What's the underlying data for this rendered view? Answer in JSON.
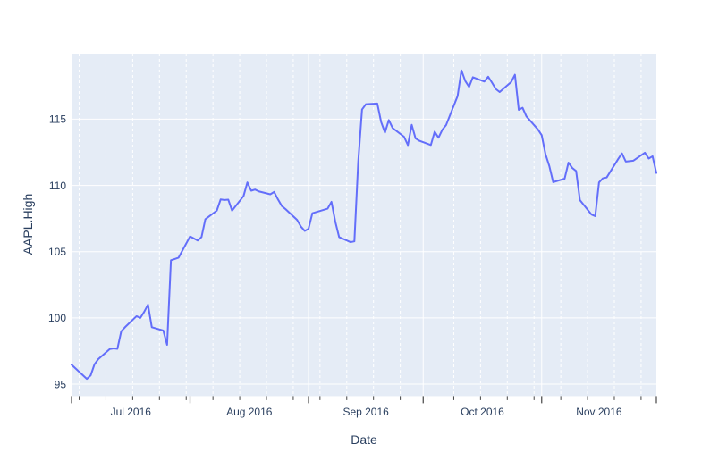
{
  "figure": {
    "background_color": "#ffffff",
    "plot_bgcolor": "#e5ecf6",
    "grid_color": "#ffffff",
    "line_color": "#636efa",
    "text_color": "#2a3f5f",
    "tick_color": "#444444"
  },
  "chart_data": {
    "type": "line",
    "title": "",
    "xlabel": "Date",
    "ylabel": "AAPL.High",
    "legend": "none",
    "grid": "on",
    "x_range": [
      "2016-07-01",
      "2016-12-01"
    ],
    "ylim": [
      94.1,
      119.95
    ],
    "yticks": [
      95,
      100,
      105,
      110,
      115
    ],
    "ytick_labels": [
      "95",
      "100",
      "105",
      "110",
      "115"
    ],
    "xticks_major": [
      "2016-07-01",
      "2016-08-01",
      "2016-09-01",
      "2016-10-01",
      "2016-11-01",
      "2016-12-01"
    ],
    "xtick_labels": [
      {
        "label": "Jul 2016",
        "period_center": "2016-07-16T12:00"
      },
      {
        "label": "Aug 2016",
        "period_center": "2016-08-16T12:00"
      },
      {
        "label": "Sep 2016",
        "period_center": "2016-09-16T00:00"
      },
      {
        "label": "Oct 2016",
        "period_center": "2016-10-16T12:00"
      },
      {
        "label": "Nov 2016",
        "period_center": "2016-11-16T00:00"
      }
    ],
    "minor_ticks": "weekly-sundays",
    "series": [
      {
        "name": "AAPL.High",
        "dates": [
          "2016-07-01",
          "2016-07-05",
          "2016-07-06",
          "2016-07-07",
          "2016-07-08",
          "2016-07-11",
          "2016-07-12",
          "2016-07-13",
          "2016-07-14",
          "2016-07-15",
          "2016-07-18",
          "2016-07-19",
          "2016-07-20",
          "2016-07-21",
          "2016-07-22",
          "2016-07-25",
          "2016-07-26",
          "2016-07-27",
          "2016-07-28",
          "2016-07-29",
          "2016-08-01",
          "2016-08-02",
          "2016-08-03",
          "2016-08-04",
          "2016-08-05",
          "2016-08-08",
          "2016-08-09",
          "2016-08-10",
          "2016-08-11",
          "2016-08-12",
          "2016-08-15",
          "2016-08-16",
          "2016-08-17",
          "2016-08-18",
          "2016-08-19",
          "2016-08-22",
          "2016-08-23",
          "2016-08-24",
          "2016-08-25",
          "2016-08-26",
          "2016-08-29",
          "2016-08-30",
          "2016-08-31",
          "2016-09-01",
          "2016-09-02",
          "2016-09-06",
          "2016-09-07",
          "2016-09-08",
          "2016-09-09",
          "2016-09-12",
          "2016-09-13",
          "2016-09-14",
          "2016-09-15",
          "2016-09-16",
          "2016-09-19",
          "2016-09-20",
          "2016-09-21",
          "2016-09-22",
          "2016-09-23",
          "2016-09-26",
          "2016-09-27",
          "2016-09-28",
          "2016-09-29",
          "2016-09-30",
          "2016-10-03",
          "2016-10-04",
          "2016-10-05",
          "2016-10-06",
          "2016-10-07",
          "2016-10-10",
          "2016-10-11",
          "2016-10-12",
          "2016-10-13",
          "2016-10-14",
          "2016-10-17",
          "2016-10-18",
          "2016-10-19",
          "2016-10-20",
          "2016-10-21",
          "2016-10-24",
          "2016-10-25",
          "2016-10-26",
          "2016-10-27",
          "2016-10-28",
          "2016-10-31",
          "2016-11-01",
          "2016-11-02",
          "2016-11-03",
          "2016-11-04",
          "2016-11-07",
          "2016-11-08",
          "2016-11-09",
          "2016-11-10",
          "2016-11-11",
          "2016-11-14",
          "2016-11-15",
          "2016-11-16",
          "2016-11-17",
          "2016-11-18",
          "2016-11-21",
          "2016-11-22",
          "2016-11-23",
          "2016-11-25",
          "2016-11-28",
          "2016-11-29",
          "2016-11-30",
          "2016-12-01"
        ],
        "values": [
          96.47,
          95.4,
          95.66,
          96.5,
          96.89,
          97.65,
          97.7,
          97.67,
          98.99,
          99.3,
          100.13,
          100.0,
          100.46,
          101.0,
          99.3,
          99.05,
          97.97,
          104.35,
          104.45,
          104.55,
          106.15,
          106.0,
          105.84,
          106.1,
          107.45,
          108.1,
          108.94,
          108.9,
          108.93,
          108.1,
          109.2,
          110.23,
          109.6,
          109.69,
          109.55,
          109.33,
          109.51,
          108.95,
          108.45,
          108.21,
          107.4,
          106.9,
          106.57,
          106.73,
          107.9,
          108.25,
          108.76,
          107.27,
          106.1,
          105.72,
          105.78,
          111.77,
          115.73,
          116.13,
          116.18,
          114.78,
          113.99,
          114.93,
          114.33,
          113.67,
          113.04,
          114.57,
          113.55,
          113.37,
          113.05,
          114.06,
          113.6,
          114.2,
          114.56,
          116.75,
          118.69,
          117.89,
          117.44,
          118.17,
          117.84,
          118.21,
          117.76,
          117.28,
          117.05,
          117.8,
          118.36,
          115.7,
          115.86,
          115.21,
          114.23,
          113.79,
          112.35,
          111.46,
          110.25,
          110.51,
          111.72,
          111.32,
          111.09,
          108.89,
          107.81,
          107.68,
          110.23,
          110.54,
          110.6,
          111.99,
          112.42,
          111.8,
          111.87,
          112.47,
          112.03,
          112.2,
          110.94
        ]
      }
    ]
  }
}
